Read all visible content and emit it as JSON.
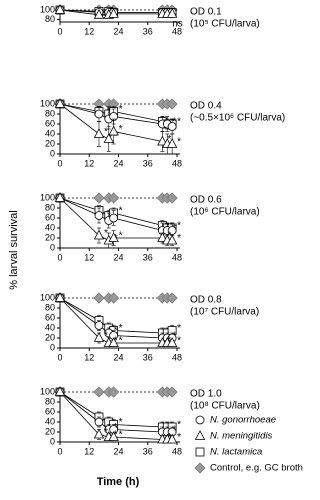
{
  "chart_data": [
    {
      "type": "line",
      "annotation": "OD 0.1",
      "subannotation": "(10⁵ CFU/larva)",
      "x": [
        0,
        16,
        20,
        22,
        42,
        44,
        46
      ],
      "xlim": [
        0,
        48
      ],
      "xticks": [
        0,
        12,
        24,
        36,
        48
      ],
      "ylim": [
        75,
        100
      ],
      "yticks": [
        80,
        100
      ],
      "series": [
        {
          "name": "N. gonorrhoeae",
          "marker": "circle",
          "color": "#ffffff",
          "values": [
            100,
            95,
            95,
            95,
            95,
            95,
            95
          ],
          "errors": [
            0,
            3,
            3,
            3,
            3,
            3,
            3
          ],
          "labels": [
            null,
            null,
            null,
            null,
            null,
            null,
            null
          ]
        },
        {
          "name": "N. meningitidis",
          "marker": "triangle",
          "color": "#ffffff",
          "values": [
            100,
            90,
            90,
            92,
            92,
            92,
            92
          ],
          "errors": [
            0,
            4,
            4,
            4,
            4,
            4,
            4
          ],
          "labels": [
            null,
            null,
            null,
            null,
            null,
            "ns",
            null
          ]
        },
        {
          "name": "N. lactamica",
          "marker": "square",
          "color": "#ffffff",
          "values": [
            100,
            97,
            97,
            95,
            95,
            95,
            95
          ],
          "errors": [
            0,
            2,
            2,
            2,
            2,
            2,
            2
          ],
          "labels": [
            null,
            null,
            null,
            null,
            null,
            null,
            null
          ]
        },
        {
          "name": "Control, e.g. GC broth",
          "marker": "diamond",
          "color": "#999999",
          "dashed": true,
          "values": [
            100,
            100,
            100,
            100,
            100,
            100,
            100
          ],
          "errors": [
            0,
            0,
            0,
            0,
            0,
            0,
            0
          ],
          "labels": [
            null,
            null,
            null,
            null,
            null,
            null,
            null
          ]
        }
      ]
    },
    {
      "type": "line",
      "annotation": "OD 0.4",
      "subannotation": "(~0.5×10⁶ CFU/larva)",
      "x": [
        0,
        16,
        20,
        22,
        42,
        44,
        46
      ],
      "xlim": [
        0,
        48
      ],
      "xticks": [
        0,
        12,
        24,
        36,
        48
      ],
      "ylim": [
        0,
        100
      ],
      "yticks": [
        0,
        20,
        40,
        60,
        80,
        100
      ],
      "series": [
        {
          "name": "N. gonorrhoeae",
          "marker": "circle",
          "color": "#ffffff",
          "values": [
            100,
            80,
            70,
            75,
            60,
            60,
            55
          ],
          "errors": [
            0,
            15,
            20,
            15,
            15,
            15,
            15
          ],
          "labels": [
            null,
            null,
            "*",
            null,
            null,
            "*",
            null
          ]
        },
        {
          "name": "N. meningitidis",
          "marker": "triangle",
          "color": "#ffffff",
          "values": [
            100,
            40,
            30,
            45,
            25,
            20,
            20
          ],
          "errors": [
            0,
            25,
            25,
            25,
            20,
            20,
            20
          ],
          "labels": [
            null,
            "*",
            "*",
            "*",
            "*",
            null,
            "*"
          ]
        },
        {
          "name": "N. lactamica",
          "marker": "square",
          "color": "#ffffff",
          "values": [
            100,
            85,
            80,
            85,
            65,
            60,
            60
          ],
          "errors": [
            0,
            10,
            15,
            10,
            10,
            10,
            10
          ],
          "labels": [
            null,
            null,
            null,
            "*",
            null,
            null,
            "*"
          ]
        },
        {
          "name": "Control, e.g. GC broth",
          "marker": "diamond",
          "color": "#999999",
          "dashed": true,
          "values": [
            100,
            100,
            100,
            100,
            100,
            100,
            100
          ],
          "errors": [
            0,
            0,
            0,
            0,
            0,
            0,
            0
          ],
          "labels": [
            null,
            null,
            null,
            null,
            null,
            null,
            null
          ]
        }
      ],
      "ylabel": "% larval survival"
    },
    {
      "type": "line",
      "annotation": "OD 0.6",
      "subannotation": "(10⁶ CFU/larva)",
      "x": [
        0,
        16,
        20,
        22,
        42,
        44,
        46
      ],
      "xlim": [
        0,
        48
      ],
      "xticks": [
        0,
        12,
        24,
        36,
        48
      ],
      "ylim": [
        0,
        100
      ],
      "yticks": [
        0,
        20,
        40,
        60,
        80,
        100
      ],
      "series": [
        {
          "name": "N. gonorrhoeae",
          "marker": "circle",
          "color": "#ffffff",
          "values": [
            100,
            65,
            55,
            60,
            35,
            35,
            35
          ],
          "errors": [
            0,
            15,
            15,
            15,
            15,
            15,
            15
          ],
          "labels": [
            null,
            null,
            "*",
            null,
            null,
            "*",
            null
          ]
        },
        {
          "name": "N. meningitidis",
          "marker": "triangle",
          "color": "#ffffff",
          "values": [
            100,
            25,
            15,
            20,
            20,
            15,
            15
          ],
          "errors": [
            0,
            15,
            15,
            15,
            10,
            10,
            10
          ],
          "labels": [
            null,
            "*",
            "*",
            "*",
            "*",
            null,
            "*"
          ]
        },
        {
          "name": "N. lactamica",
          "marker": "square",
          "color": "#ffffff",
          "values": [
            100,
            75,
            65,
            70,
            45,
            40,
            40
          ],
          "errors": [
            0,
            10,
            10,
            10,
            10,
            10,
            10
          ],
          "labels": [
            null,
            null,
            null,
            "*",
            null,
            null,
            "*"
          ]
        },
        {
          "name": "Control, e.g. GC broth",
          "marker": "diamond",
          "color": "#999999",
          "dashed": true,
          "values": [
            100,
            100,
            100,
            100,
            100,
            100,
            100
          ],
          "errors": [
            0,
            0,
            0,
            0,
            0,
            0,
            0
          ],
          "labels": [
            null,
            null,
            null,
            null,
            null,
            null,
            null
          ]
        }
      ]
    },
    {
      "type": "line",
      "annotation": "OD 0.8",
      "subannotation": "(10⁷ CFU/larva)",
      "x": [
        0,
        16,
        20,
        22,
        42,
        44,
        46
      ],
      "xlim": [
        0,
        48
      ],
      "xticks": [
        0,
        12,
        24,
        36,
        48
      ],
      "ylim": [
        0,
        100
      ],
      "yticks": [
        0,
        20,
        40,
        60,
        80,
        100
      ],
      "series": [
        {
          "name": "N. gonorrhoeae",
          "marker": "circle",
          "color": "#ffffff",
          "values": [
            100,
            45,
            30,
            25,
            20,
            20,
            20
          ],
          "errors": [
            0,
            10,
            10,
            10,
            10,
            10,
            10
          ],
          "labels": [
            null,
            null,
            "*",
            null,
            null,
            "*",
            null
          ]
        },
        {
          "name": "N. meningitidis",
          "marker": "triangle",
          "color": "#ffffff",
          "values": [
            100,
            20,
            10,
            10,
            10,
            10,
            10
          ],
          "errors": [
            0,
            10,
            5,
            5,
            5,
            5,
            5
          ],
          "labels": [
            null,
            "*",
            "*",
            "*",
            "*",
            null,
            "*"
          ]
        },
        {
          "name": "N. lactamica",
          "marker": "square",
          "color": "#ffffff",
          "values": [
            100,
            55,
            40,
            35,
            30,
            30,
            35
          ],
          "errors": [
            0,
            10,
            10,
            10,
            10,
            10,
            10
          ],
          "labels": [
            null,
            null,
            null,
            "*",
            null,
            null,
            "*"
          ]
        },
        {
          "name": "Control, e.g. GC broth",
          "marker": "diamond",
          "color": "#999999",
          "dashed": true,
          "values": [
            100,
            100,
            100,
            100,
            100,
            100,
            100
          ],
          "errors": [
            0,
            0,
            0,
            0,
            0,
            0,
            0
          ],
          "labels": [
            null,
            null,
            null,
            null,
            null,
            null,
            null
          ]
        }
      ]
    },
    {
      "type": "line",
      "annotation": "OD 1.0",
      "subannotation": "(10⁸ CFU/larva)",
      "x": [
        0,
        16,
        20,
        22,
        42,
        44,
        46
      ],
      "xlim": [
        0,
        48
      ],
      "xticks": [
        0,
        12,
        24,
        36,
        48
      ],
      "ylim": [
        0,
        100
      ],
      "yticks": [
        0,
        20,
        40,
        60,
        80,
        100
      ],
      "series": [
        {
          "name": "N. gonorrhoeae",
          "marker": "circle",
          "color": "#ffffff",
          "values": [
            100,
            40,
            25,
            25,
            20,
            20,
            20
          ],
          "errors": [
            0,
            10,
            10,
            10,
            10,
            10,
            10
          ],
          "labels": [
            null,
            null,
            "*",
            null,
            null,
            "*",
            null
          ]
        },
        {
          "name": "N. meningitidis",
          "marker": "triangle",
          "color": "#ffffff",
          "values": [
            100,
            15,
            10,
            10,
            5,
            5,
            5
          ],
          "errors": [
            0,
            10,
            5,
            5,
            5,
            5,
            5
          ],
          "labels": [
            null,
            "*",
            "*",
            "*",
            "*",
            null,
            "*"
          ]
        },
        {
          "name": "N. lactamica",
          "marker": "square",
          "color": "#ffffff",
          "values": [
            100,
            50,
            40,
            35,
            30,
            30,
            30
          ],
          "errors": [
            0,
            10,
            10,
            10,
            10,
            10,
            10
          ],
          "labels": [
            null,
            null,
            null,
            "*",
            null,
            null,
            "*"
          ]
        },
        {
          "name": "Control, e.g. GC broth",
          "marker": "diamond",
          "color": "#999999",
          "dashed": true,
          "values": [
            100,
            100,
            100,
            100,
            100,
            100,
            100
          ],
          "errors": [
            0,
            0,
            0,
            0,
            0,
            0,
            0
          ],
          "labels": [
            null,
            null,
            null,
            null,
            null,
            null,
            null
          ]
        }
      ],
      "xlabel": "Time (h)"
    }
  ]
}
